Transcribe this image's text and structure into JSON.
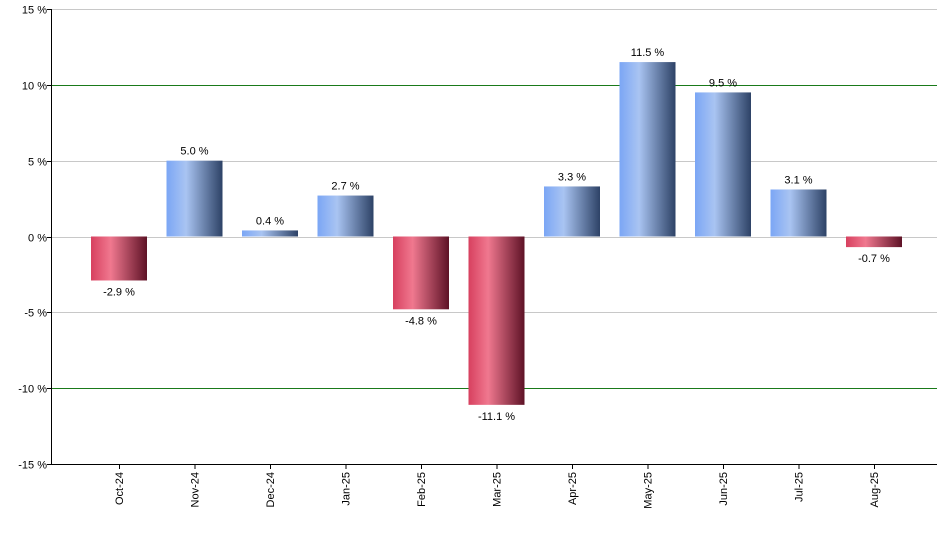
{
  "chart_data": {
    "type": "bar",
    "categories": [
      "Oct-24",
      "Nov-24",
      "Dec-24",
      "Jan-25",
      "Feb-25",
      "Mar-25",
      "Apr-25",
      "May-25",
      "Jun-25",
      "Jul-25",
      "Aug-25"
    ],
    "values": [
      -2.9,
      5.0,
      0.4,
      2.7,
      -4.8,
      -11.1,
      3.3,
      11.5,
      9.5,
      3.1,
      -0.7
    ],
    "data_labels": [
      "-2.9 %",
      "5.0 %",
      "0.4 %",
      "2.7 %",
      "-4.8 %",
      "-11.1 %",
      "3.3 %",
      "11.5 %",
      "9.5 %",
      "3.1 %",
      "-0.7 %"
    ],
    "ylim": [
      -15,
      15
    ],
    "yticks": [
      15,
      10,
      5,
      0,
      -5,
      -10,
      -15
    ],
    "ytick_labels": [
      "15 %",
      "10 %",
      "5 %",
      "0 %",
      "-5 %",
      "-10 %",
      "-15 %"
    ],
    "major_gridlines": [
      10,
      -10
    ],
    "grid": true,
    "colors": {
      "positive": "#7aa5f2",
      "negative": "#e0506e",
      "major_grid": "#1a7a1a",
      "minor_grid": "#c8c8c8",
      "axis": "#000000"
    }
  }
}
